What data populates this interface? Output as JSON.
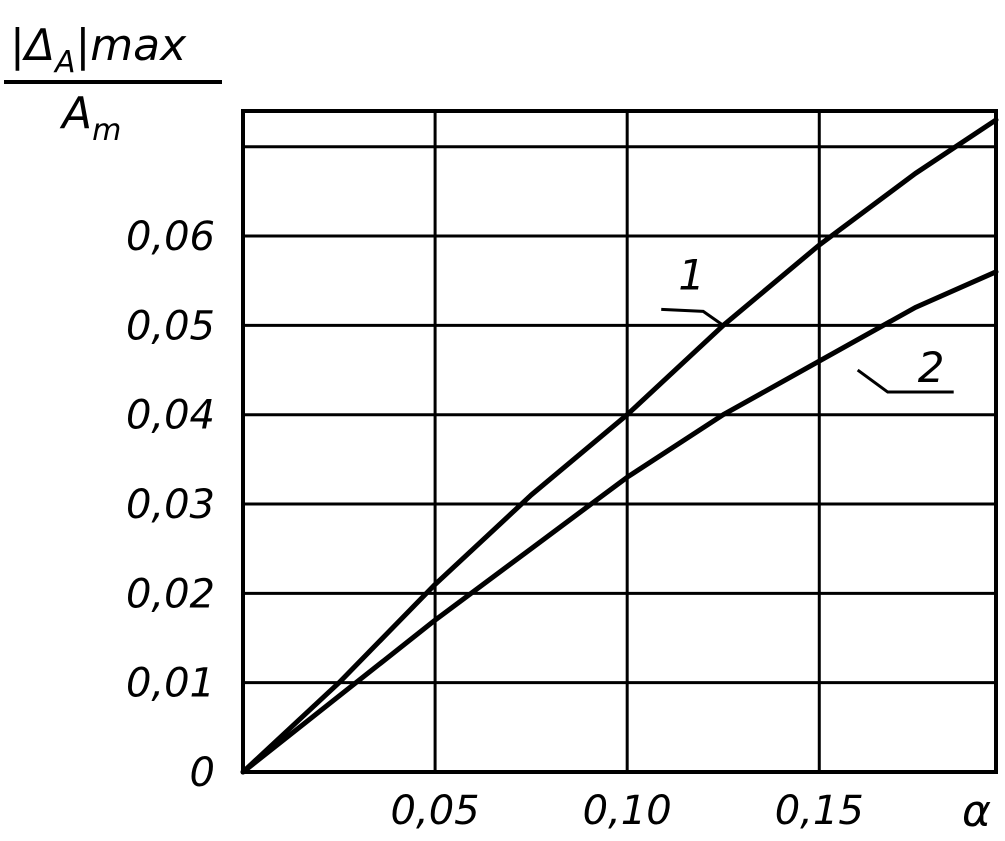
{
  "chart_data": {
    "type": "line",
    "title": "",
    "ylabel": {
      "numerator": "|Δ",
      "subscript": "A",
      "suffix": "|max",
      "denominator": "A",
      "denominator_subscript": "m"
    },
    "xlabel": "α",
    "xlim": [
      0,
      0.196
    ],
    "ylim": [
      0,
      0.074
    ],
    "x_ticks": [
      {
        "value": 0.05,
        "label": "0,05"
      },
      {
        "value": 0.1,
        "label": "0,10"
      },
      {
        "value": 0.15,
        "label": "0,15"
      }
    ],
    "y_ticks": [
      {
        "value": 0,
        "label": "0"
      },
      {
        "value": 0.01,
        "label": "0,01"
      },
      {
        "value": 0.02,
        "label": "0,02"
      },
      {
        "value": 0.03,
        "label": "0,03"
      },
      {
        "value": 0.04,
        "label": "0,04"
      },
      {
        "value": 0.05,
        "label": "0,05"
      },
      {
        "value": 0.06,
        "label": "0,06"
      }
    ],
    "grid_x": [
      0.05,
      0.1,
      0.15
    ],
    "grid_y": [
      0.01,
      0.02,
      0.03,
      0.04,
      0.05,
      0.06,
      0.07
    ],
    "grid": true,
    "series": [
      {
        "name": "1",
        "x": [
          0,
          0.025,
          0.05,
          0.075,
          0.1,
          0.125,
          0.15,
          0.175,
          0.196
        ],
        "y": [
          0,
          0.01,
          0.021,
          0.031,
          0.04,
          0.05,
          0.059,
          0.067,
          0.073
        ]
      },
      {
        "name": "2",
        "x": [
          0,
          0.025,
          0.05,
          0.075,
          0.1,
          0.125,
          0.15,
          0.175,
          0.196
        ],
        "y": [
          0,
          0.0085,
          0.017,
          0.025,
          0.033,
          0.04,
          0.046,
          0.052,
          0.056
        ]
      }
    ],
    "annotations": [
      {
        "series": "1",
        "text": "1",
        "at_x": 0.125,
        "at_y": 0.05
      },
      {
        "series": "2",
        "text": "2",
        "at_x": 0.16,
        "at_y": 0.045
      }
    ]
  }
}
